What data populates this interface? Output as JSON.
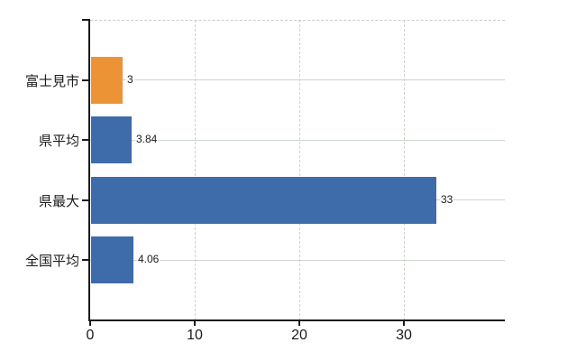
{
  "chart_data": {
    "type": "bar",
    "orientation": "horizontal",
    "categories": [
      "富士見市",
      "県平均",
      "県最大",
      "全国平均"
    ],
    "values": [
      3,
      3.84,
      33,
      4.06
    ],
    "value_labels": [
      "3",
      "3.84",
      "33",
      "4.06"
    ],
    "bar_colors": [
      "#EC9435",
      "#3E6CAB",
      "#3E6CAB",
      "#3E6CAB"
    ],
    "x_ticks": [
      0,
      10,
      20,
      30
    ],
    "x_tick_labels": [
      "0",
      "10",
      "20",
      "30"
    ],
    "xlim": [
      0,
      39.7
    ],
    "title": "",
    "legend_position": "none",
    "grid": {
      "horizontal_style": "solid",
      "horizontal_color": "#ccd4cc",
      "vertical_style": "dashed",
      "vertical_color": "#ccd4cc",
      "top_border_style": "dashed",
      "top_border_color": "#c9cdc9"
    },
    "colors": {
      "axis": "#1a1a1a",
      "text": "#1a1a1a",
      "background": "#ffffff",
      "bar_orange": "#EC9435",
      "bar_blue": "#3E6CAB"
    }
  }
}
